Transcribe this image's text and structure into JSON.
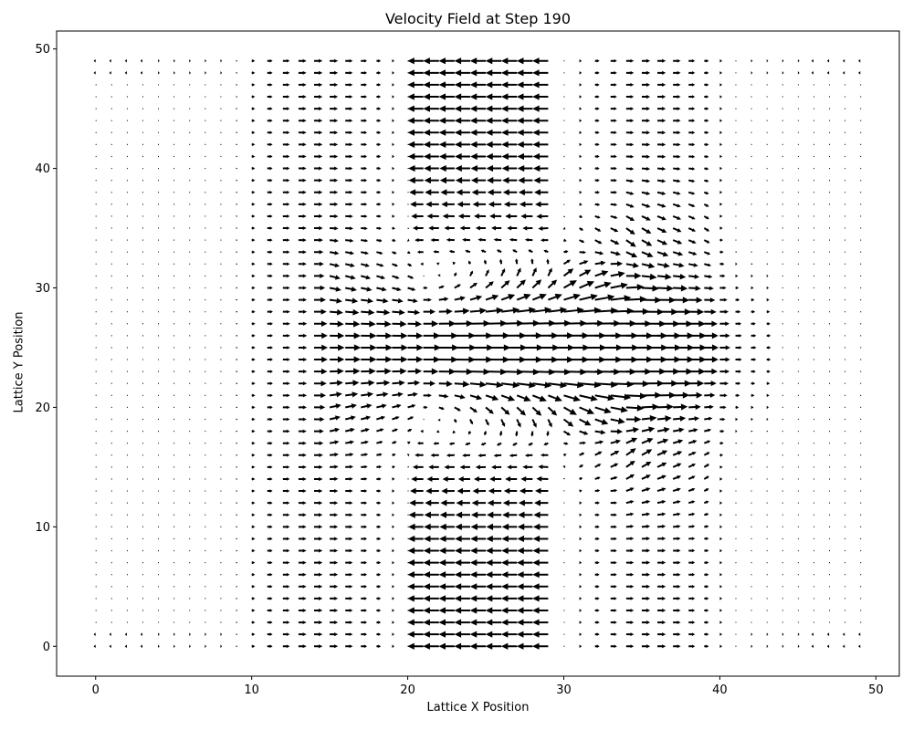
{
  "chart_data": {
    "type": "quiver",
    "title": "Velocity Field at Step 190",
    "xlabel": "Lattice X Position",
    "ylabel": "Lattice Y Position",
    "xlim": [
      -2.5,
      51.5
    ],
    "ylim": [
      -2.5,
      51.5
    ],
    "x_ticks": [
      0,
      10,
      20,
      30,
      40,
      50
    ],
    "y_ticks": [
      0,
      10,
      20,
      30,
      40,
      50
    ],
    "grid": false,
    "lattice": {
      "nx": 50,
      "ny": 50,
      "x_start": 0,
      "y_start": 0,
      "spacing": 1
    },
    "flow_pattern": {
      "central_jet": {
        "direction": "+x",
        "y_center": 25,
        "x_range": [
          15,
          42
        ],
        "peak_x": 27
      },
      "return_flow_bands": [
        {
          "direction": "-x",
          "x_range": [
            20.5,
            29
          ],
          "y_range": [
            0,
            17
          ]
        },
        {
          "direction": "-x",
          "x_range": [
            20.5,
            29
          ],
          "y_range": [
            34,
            49
          ]
        }
      ],
      "forward_flow_bands": [
        {
          "direction": "+x",
          "x_range": [
            9,
            19.5
          ],
          "y_range": [
            0,
            49
          ]
        },
        {
          "direction": "+x",
          "x_range": [
            30.5,
            40
          ],
          "y_range": [
            0,
            49
          ]
        }
      ],
      "color": "#000000"
    }
  }
}
